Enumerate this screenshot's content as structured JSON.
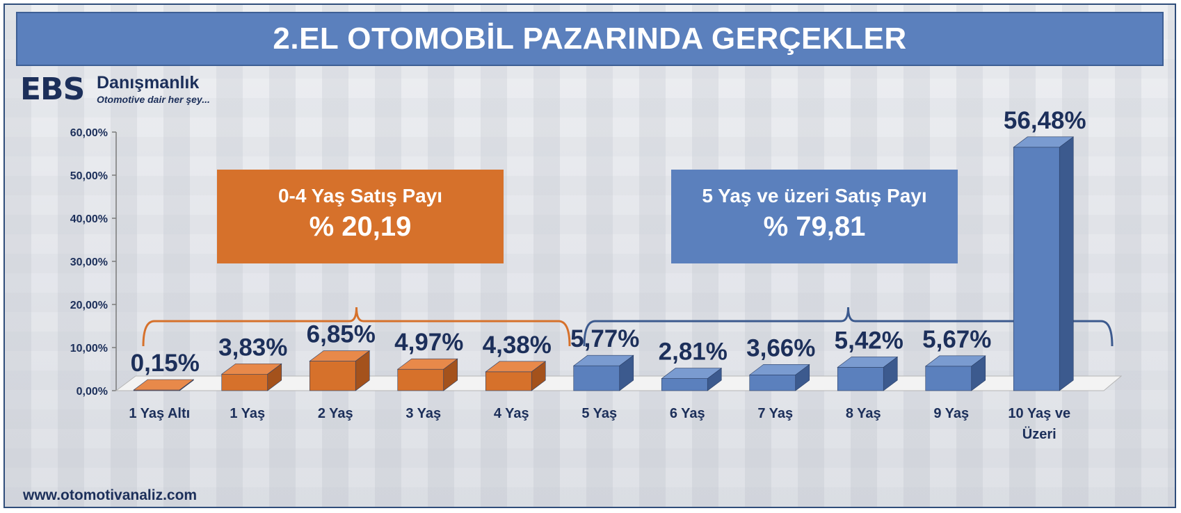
{
  "title": "2.EL OTOMOBİL PAZARINDA GERÇEKLER",
  "logo": {
    "brand": "EBS",
    "name": "Danışmanlık",
    "tagline": "Otomotive dair her şey..."
  },
  "website": "www.otomotivanaliz.com",
  "groups": [
    {
      "label": "0-4 Yaş Satış Payı",
      "value_text": "% 20,19",
      "color": "#d6712b"
    },
    {
      "label": "5 Yaş ve üzeri Satış Payı",
      "value_text": "% 79,81",
      "color": "#5b80bd"
    }
  ],
  "colors": {
    "orange_front": "#d6712b",
    "orange_top": "#e8894a",
    "orange_side": "#a4521c",
    "blue_front": "#5b80bd",
    "blue_top": "#7a9bd0",
    "blue_side": "#3c5a8e",
    "text": "#1c2f5a",
    "floor": "#f3f3f3"
  },
  "chart_data": {
    "type": "bar",
    "title": "2.EL OTOMOBİL PAZARINDA GERÇEKLER",
    "categories": [
      "1 Yaş Altı",
      "1 Yaş",
      "2 Yaş",
      "3 Yaş",
      "4 Yaş",
      "5 Yaş",
      "6 Yaş",
      "7 Yaş",
      "8 Yaş",
      "9 Yaş",
      "10 Yaş ve Üzeri"
    ],
    "values": [
      0.15,
      3.83,
      6.85,
      4.97,
      4.38,
      5.77,
      2.81,
      3.66,
      5.42,
      5.67,
      56.48
    ],
    "value_labels": [
      "0,15%",
      "3,83%",
      "6,85%",
      "4,97%",
      "4,38%",
      "5,77%",
      "2,81%",
      "3,66%",
      "5,42%",
      "5,67%",
      "56,48%"
    ],
    "bar_groups": [
      "orange",
      "orange",
      "orange",
      "orange",
      "orange",
      "blue",
      "blue",
      "blue",
      "blue",
      "blue",
      "blue"
    ],
    "yticks": [
      "0,00%",
      "10,00%",
      "20,00%",
      "30,00%",
      "40,00%",
      "50,00%",
      "60,00%"
    ],
    "ylim": [
      0,
      60
    ],
    "xlabel": "",
    "ylabel": "",
    "grid": false
  }
}
